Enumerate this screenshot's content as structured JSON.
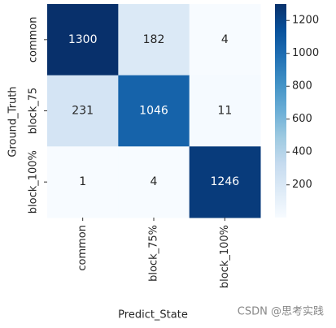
{
  "chart_data": {
    "type": "heatmap",
    "x_label": "Predict_State",
    "y_label": "Ground_Truth",
    "x_categories": [
      "common",
      "block_75%",
      "block_100%"
    ],
    "y_categories": [
      "common",
      "block_75",
      "block_100%"
    ],
    "values": [
      [
        1300,
        182,
        4
      ],
      [
        231,
        1046,
        11
      ],
      [
        1,
        4,
        1246
      ]
    ],
    "colormap": "Blues",
    "colorbar_lim": [
      1,
      1300
    ],
    "colorbar_ticks": [
      200,
      400,
      600,
      800,
      1000,
      1200
    ]
  },
  "watermark": "CSDN @思考实践"
}
